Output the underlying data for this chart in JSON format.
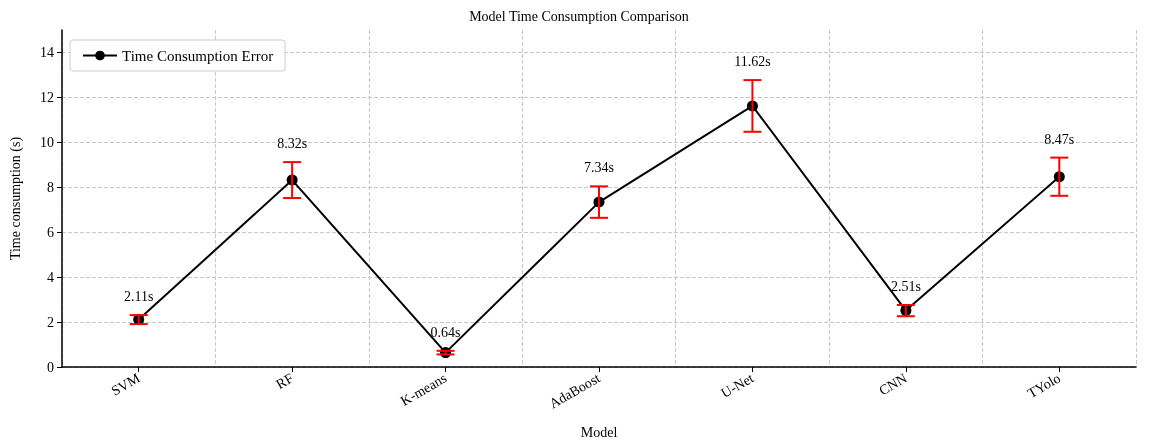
{
  "chart_data": {
    "type": "line",
    "title": "Model Time Consumption Comparison",
    "xlabel": "Model",
    "ylabel": "Time consumption (s)",
    "categories": [
      "SVM",
      "RF",
      "K-means",
      "AdaBoost",
      "U-Net",
      "CNN",
      "TYolo"
    ],
    "series": [
      {
        "name": "Time Consumption Error",
        "color": "#000000",
        "values": [
          2.11,
          8.32,
          0.64,
          7.34,
          11.62,
          2.51,
          8.47
        ],
        "errors": [
          0.2,
          0.8,
          0.08,
          0.7,
          1.15,
          0.25,
          0.85
        ],
        "value_labels": [
          "2.11s",
          "8.32s",
          "0.64s",
          "7.34s",
          "11.62s",
          "2.51s",
          "8.47s"
        ]
      }
    ],
    "ylim": [
      0,
      15
    ],
    "yticks": [
      0,
      2,
      4,
      6,
      8,
      10,
      12,
      14
    ],
    "grid": true,
    "legend": "top left",
    "marker": "circle",
    "line_style": "solid"
  }
}
